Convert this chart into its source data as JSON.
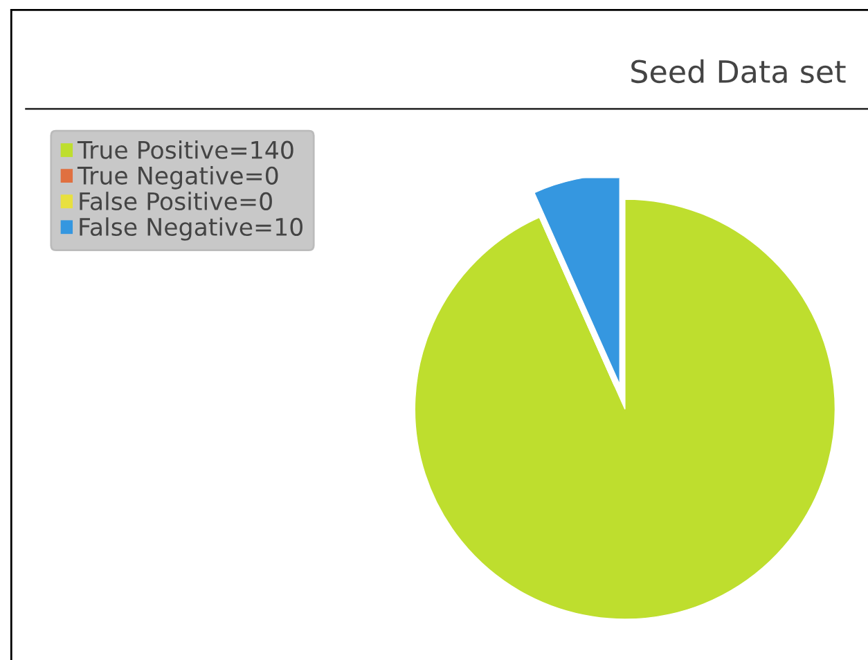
{
  "chart_data": {
    "type": "pie",
    "title": "Seed Data set",
    "categories": [
      "True Positive=140",
      "True Negative=0",
      "False Positive=0",
      "False Negative=10"
    ],
    "values": [
      140,
      0,
      0,
      10
    ],
    "colors": [
      "#bede2e",
      "#e07040",
      "#e8e040",
      "#3597e0"
    ],
    "legend": "top left"
  }
}
